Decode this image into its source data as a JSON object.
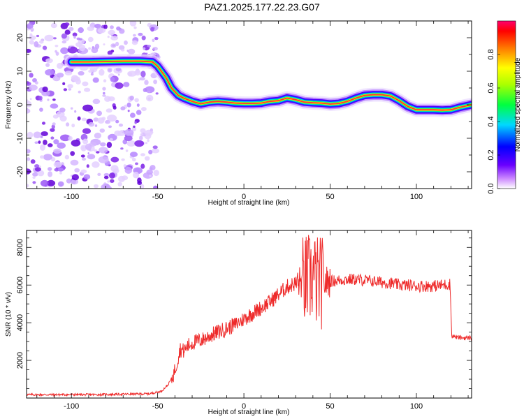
{
  "title": "PAZ1.2025.177.22.23.G07",
  "colors": {
    "snr_line": "#ee2a2a",
    "ridge_core": "#e8293a",
    "noise": "#7a1fe6"
  },
  "chart_data": [
    {
      "type": "heatmap",
      "title": "PAZ1.2025.177.22.23.G07",
      "xlabel": "Height of straight line (km)",
      "ylabel": "Frequency (Hz)",
      "xlim": [
        -126,
        132
      ],
      "ylim": [
        -25,
        25
      ],
      "x_ticks": [
        -100,
        -50,
        0,
        50,
        100
      ],
      "y_ticks": [
        -20,
        -10,
        0,
        10,
        20
      ],
      "colorbar": {
        "label": "Normalized spectral amplitude",
        "range": [
          0,
          1
        ],
        "ticks": [
          0.0,
          0.2,
          0.4,
          0.6,
          0.8
        ],
        "colormap": "rainbow (white-violet-blue-cyan-green-yellow-red-magenta)"
      },
      "ridge": {
        "x": [
          -100,
          -90,
          -80,
          -70,
          -60,
          -53,
          -50,
          -45,
          -42,
          -38,
          -35,
          -30,
          -25,
          -20,
          -15,
          -10,
          -5,
          0,
          5,
          10,
          15,
          20,
          25,
          30,
          35,
          40,
          45,
          50,
          55,
          60,
          65,
          70,
          75,
          80,
          85,
          90,
          95,
          100,
          105,
          110,
          115,
          120,
          125,
          132
        ],
        "y": [
          12.8,
          12.8,
          12.9,
          13.0,
          13.0,
          12.8,
          11.5,
          8.0,
          5.0,
          2.8,
          2.0,
          1.0,
          0.3,
          0.8,
          1.0,
          0.8,
          0.5,
          0.4,
          0.4,
          0.5,
          1.0,
          1.2,
          2.0,
          1.5,
          0.8,
          0.6,
          0.5,
          0.2,
          0.4,
          1.0,
          2.0,
          2.8,
          3.0,
          3.0,
          2.6,
          1.2,
          -0.5,
          -1.5,
          -1.5,
          -1.5,
          -1.6,
          -1.5,
          -0.8,
          0.0
        ]
      }
    },
    {
      "type": "line",
      "xlabel": "Height of straight line (km)",
      "ylabel": "SNR (10 * v/v)",
      "xlim": [
        -126,
        132
      ],
      "ylim": [
        0,
        8900
      ],
      "x_ticks": [
        -100,
        -50,
        0,
        50,
        100
      ],
      "y_ticks": [
        2000,
        4000,
        6000,
        8000
      ],
      "x": [
        -126,
        -110,
        -90,
        -70,
        -55,
        -48,
        -44,
        -41,
        -39,
        -37,
        -35,
        -32,
        -28,
        -24,
        -20,
        -15,
        -10,
        -5,
        0,
        5,
        10,
        15,
        20,
        25,
        30,
        35,
        38,
        40,
        42,
        45,
        50,
        55,
        60,
        65,
        70,
        75,
        80,
        85,
        90,
        95,
        100,
        105,
        110,
        115,
        119.5,
        120.5,
        125,
        132
      ],
      "values": [
        180,
        180,
        180,
        200,
        230,
        350,
        700,
        1200,
        1800,
        2600,
        2500,
        2800,
        3000,
        3100,
        3300,
        3500,
        3700,
        3900,
        4200,
        4500,
        4800,
        5100,
        5500,
        5900,
        6100,
        6200,
        6300,
        6500,
        6200,
        6100,
        6200,
        6250,
        6300,
        6300,
        6250,
        6200,
        6150,
        6100,
        6000,
        6000,
        5950,
        5950,
        5950,
        6000,
        6050,
        3300,
        3200,
        3200
      ]
    }
  ]
}
